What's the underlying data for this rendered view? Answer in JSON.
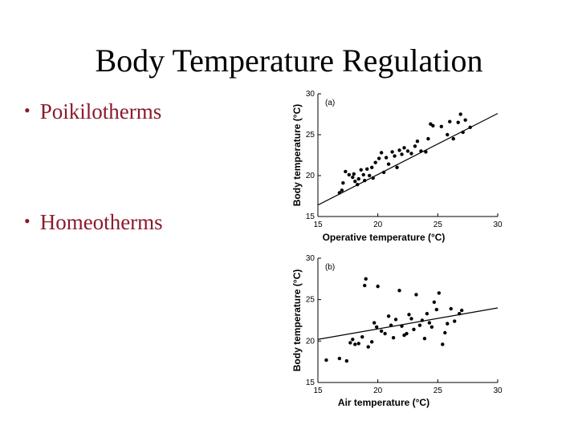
{
  "slide": {
    "title": "Body Temperature Regulation",
    "bullets": [
      {
        "label": "Poikilotherms"
      },
      {
        "label": "Homeotherms"
      }
    ],
    "bullet_color": "#8b1a2b"
  },
  "chart_data": [
    {
      "type": "scatter",
      "panel_label": "(a)",
      "xlabel": "Operative temperature (°C)",
      "ylabel": "Body temperature (°C)",
      "xlim": [
        15,
        30
      ],
      "ylim": [
        15,
        30
      ],
      "xticks": [
        15,
        20,
        25,
        30
      ],
      "yticks": [
        15,
        20,
        25,
        30
      ],
      "grid": false,
      "points": [
        [
          16.8,
          17.9
        ],
        [
          17.0,
          18.2
        ],
        [
          17.1,
          19.1
        ],
        [
          17.3,
          20.5
        ],
        [
          17.6,
          20.1
        ],
        [
          17.9,
          19.8
        ],
        [
          18.0,
          20.2
        ],
        [
          18.1,
          19.3
        ],
        [
          18.3,
          18.9
        ],
        [
          18.4,
          19.6
        ],
        [
          18.6,
          20.7
        ],
        [
          18.8,
          20.1
        ],
        [
          18.9,
          19.4
        ],
        [
          19.1,
          20.8
        ],
        [
          19.3,
          20.0
        ],
        [
          19.5,
          21.0
        ],
        [
          19.6,
          19.7
        ],
        [
          19.8,
          21.6
        ],
        [
          20.1,
          22.1
        ],
        [
          20.3,
          22.8
        ],
        [
          20.5,
          20.4
        ],
        [
          20.7,
          22.2
        ],
        [
          20.9,
          21.4
        ],
        [
          21.2,
          22.9
        ],
        [
          21.4,
          22.4
        ],
        [
          21.6,
          21.0
        ],
        [
          21.8,
          23.1
        ],
        [
          22.0,
          22.6
        ],
        [
          22.2,
          23.4
        ],
        [
          22.5,
          23.0
        ],
        [
          22.8,
          22.7
        ],
        [
          23.1,
          23.6
        ],
        [
          23.3,
          24.2
        ],
        [
          23.6,
          23.0
        ],
        [
          24.0,
          22.9
        ],
        [
          24.2,
          24.5
        ],
        [
          24.4,
          26.3
        ],
        [
          24.6,
          26.1
        ],
        [
          25.3,
          26.0
        ],
        [
          25.8,
          25.0
        ],
        [
          26.0,
          26.6
        ],
        [
          26.3,
          24.5
        ],
        [
          26.7,
          26.5
        ],
        [
          26.9,
          27.5
        ],
        [
          27.1,
          25.3
        ],
        [
          27.3,
          26.8
        ],
        [
          27.7,
          25.9
        ]
      ],
      "regression": {
        "x": [
          15,
          30
        ],
        "y": [
          16.4,
          27.6
        ]
      }
    },
    {
      "type": "scatter",
      "panel_label": "(b)",
      "xlabel": "Air temperature (°C)",
      "ylabel": "Body temperature (°C)",
      "xlim": [
        15,
        30
      ],
      "ylim": [
        15,
        30
      ],
      "xticks": [
        15,
        20,
        25,
        30
      ],
      "yticks": [
        15,
        20,
        25,
        30
      ],
      "grid": false,
      "points": [
        [
          15.7,
          17.7
        ],
        [
          16.8,
          17.9
        ],
        [
          17.4,
          17.6
        ],
        [
          17.7,
          19.8
        ],
        [
          17.9,
          20.2
        ],
        [
          18.1,
          19.6
        ],
        [
          18.4,
          19.7
        ],
        [
          18.7,
          20.5
        ],
        [
          18.9,
          26.7
        ],
        [
          19.0,
          27.5
        ],
        [
          19.2,
          19.3
        ],
        [
          19.5,
          19.9
        ],
        [
          19.7,
          22.2
        ],
        [
          19.9,
          21.7
        ],
        [
          20.0,
          26.6
        ],
        [
          20.3,
          21.2
        ],
        [
          20.6,
          20.9
        ],
        [
          20.9,
          23.0
        ],
        [
          21.1,
          21.9
        ],
        [
          21.3,
          20.4
        ],
        [
          21.5,
          22.6
        ],
        [
          21.8,
          26.1
        ],
        [
          22.0,
          21.8
        ],
        [
          22.2,
          20.7
        ],
        [
          22.4,
          20.9
        ],
        [
          22.6,
          23.2
        ],
        [
          22.8,
          22.7
        ],
        [
          23.0,
          21.4
        ],
        [
          23.2,
          25.6
        ],
        [
          23.5,
          21.9
        ],
        [
          23.7,
          22.5
        ],
        [
          23.9,
          20.3
        ],
        [
          24.1,
          23.3
        ],
        [
          24.3,
          22.2
        ],
        [
          24.5,
          21.7
        ],
        [
          24.7,
          24.7
        ],
        [
          24.9,
          23.8
        ],
        [
          25.1,
          25.8
        ],
        [
          25.4,
          19.6
        ],
        [
          25.6,
          21.0
        ],
        [
          25.8,
          22.1
        ],
        [
          26.1,
          23.9
        ],
        [
          26.4,
          22.4
        ],
        [
          26.8,
          23.3
        ],
        [
          27.0,
          23.7
        ]
      ],
      "regression": {
        "x": [
          15,
          30
        ],
        "y": [
          20.2,
          24.0
        ]
      }
    }
  ]
}
